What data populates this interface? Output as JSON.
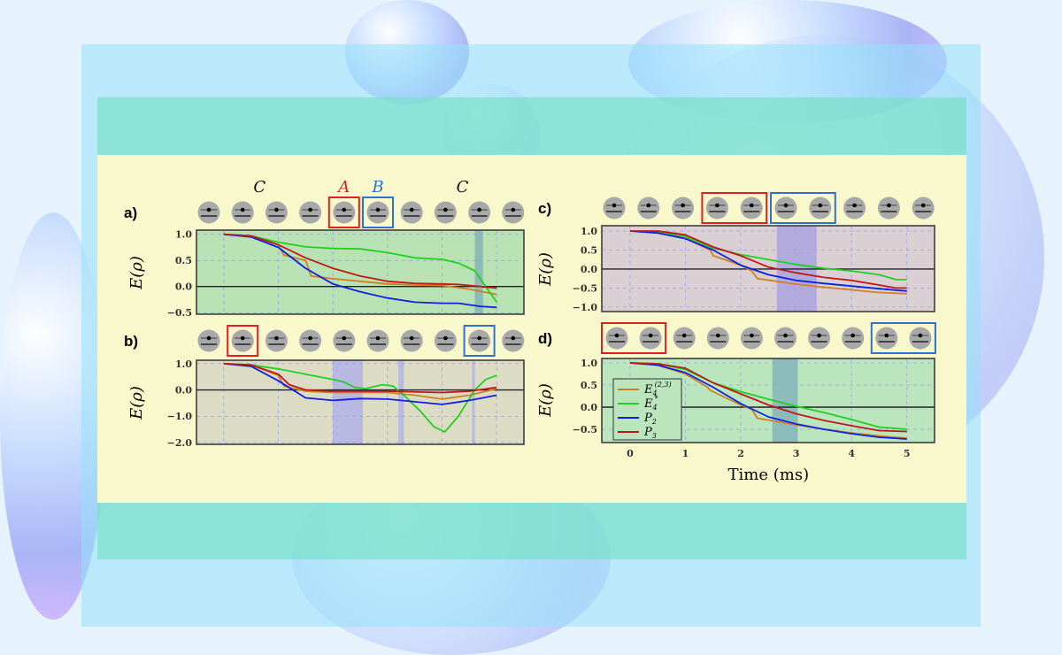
{
  "colors": {
    "E4_23": "#d08020",
    "E4_star": "#20d020",
    "P2": "#1020e0",
    "P3": "#c01818",
    "box_A": "#e02020",
    "box_B": "#3070d0"
  },
  "ion_icon": "trapped-ion-icon",
  "x_axis": {
    "label": "Time (ms)",
    "ticks": [
      "0",
      "1",
      "2",
      "3",
      "4",
      "5"
    ]
  },
  "legend": [
    {
      "key": "E4_23",
      "label": "E",
      "sub": "4",
      "sup": "(2,3)"
    },
    {
      "key": "E4_star",
      "label": "E",
      "sub": "4",
      "sup": "*"
    },
    {
      "key": "P2",
      "label": "P",
      "sub": "2",
      "sup": ""
    },
    {
      "key": "P3",
      "label": "P",
      "sub": "3",
      "sup": ""
    }
  ],
  "chart_data": [
    {
      "panel": "a)",
      "type": "line",
      "ylabel": "E(ρ)",
      "xlim": [
        -0.5,
        5.5
      ],
      "ylim": [
        -0.53,
        1.08
      ],
      "yticks": [
        1.0,
        0.5,
        0.0,
        -0.5
      ],
      "ytick_labels": [
        "1.0",
        "0.5",
        "0.0",
        "−0.5"
      ],
      "grid": true,
      "background": "#b9e2b4",
      "shade_color": "#8cbab4",
      "shaded": [
        [
          4.6,
          4.75
        ]
      ],
      "ion_labels": [
        {
          "text": "C",
          "ion": 1.5,
          "color": "#111"
        },
        {
          "text": "A",
          "ion": 4,
          "color": "#e02020"
        },
        {
          "text": "B",
          "ion": 5,
          "color": "#3070d0"
        },
        {
          "text": "C",
          "ion": 7.5,
          "color": "#111"
        }
      ],
      "red_box": [
        4,
        4
      ],
      "blue_box": [
        5,
        5
      ],
      "series": {
        "E4_star": [
          [
            0,
            1
          ],
          [
            0.5,
            0.97
          ],
          [
            1,
            0.85
          ],
          [
            1.5,
            0.76
          ],
          [
            2,
            0.73
          ],
          [
            2.5,
            0.72
          ],
          [
            3,
            0.65
          ],
          [
            3.5,
            0.55
          ],
          [
            4,
            0.52
          ],
          [
            4.3,
            0.45
          ],
          [
            4.6,
            0.3
          ],
          [
            5,
            -0.3
          ]
        ],
        "P2": [
          [
            0,
            1
          ],
          [
            0.5,
            0.95
          ],
          [
            1,
            0.75
          ],
          [
            1.5,
            0.35
          ],
          [
            2,
            0.05
          ],
          [
            2.5,
            -0.1
          ],
          [
            3,
            -0.22
          ],
          [
            3.5,
            -0.3
          ],
          [
            4,
            -0.32
          ],
          [
            4.3,
            -0.32
          ],
          [
            4.7,
            -0.38
          ],
          [
            5,
            -0.4
          ]
        ],
        "P3": [
          [
            0,
            1
          ],
          [
            0.5,
            0.97
          ],
          [
            1,
            0.8
          ],
          [
            1.5,
            0.55
          ],
          [
            2,
            0.35
          ],
          [
            2.5,
            0.2
          ],
          [
            3,
            0.1
          ],
          [
            3.5,
            0.06
          ],
          [
            4,
            0.05
          ],
          [
            4.3,
            0.04
          ],
          [
            4.7,
            0.0
          ],
          [
            5,
            -0.03
          ]
        ],
        "E4_23": [
          [
            0,
            1
          ],
          [
            0.5,
            0.97
          ],
          [
            1,
            0.8
          ],
          [
            1.1,
            0.6
          ],
          [
            1.5,
            0.5
          ],
          [
            1.6,
            0.2
          ],
          [
            2,
            0.15
          ],
          [
            2.5,
            0.1
          ],
          [
            3,
            0.05
          ],
          [
            3.5,
            0.03
          ],
          [
            4,
            0.02
          ],
          [
            4.5,
            -0.05
          ],
          [
            5,
            -0.15
          ]
        ]
      }
    },
    {
      "panel": "b)",
      "type": "line",
      "ylabel": "E(ρ)",
      "xlim": [
        -0.5,
        5.5
      ],
      "ylim": [
        -2.07,
        1.13
      ],
      "yticks": [
        1.0,
        0.0,
        -1.0,
        -2.0
      ],
      "ytick_labels": [
        "1.0",
        "0.0",
        "−1.0",
        "−2.0"
      ],
      "grid": true,
      "background": "#dcdcc4",
      "shade_color": "#b8b8e2",
      "shaded": [
        [
          2,
          2.55
        ],
        [
          3.2,
          3.3
        ],
        [
          4.55,
          4.6
        ]
      ],
      "ion_labels": [],
      "red_box": [
        1,
        1
      ],
      "blue_box": [
        8,
        8
      ],
      "series": {
        "E4_star": [
          [
            0,
            1
          ],
          [
            0.5,
            0.95
          ],
          [
            1,
            0.8
          ],
          [
            1.5,
            0.6
          ],
          [
            2,
            0.4
          ],
          [
            2.2,
            0.3
          ],
          [
            2.4,
            0.1
          ],
          [
            2.6,
            0.05
          ],
          [
            2.9,
            0.2
          ],
          [
            3.1,
            0.15
          ],
          [
            3.3,
            -0.2
          ],
          [
            3.6,
            -0.8
          ],
          [
            3.85,
            -1.4
          ],
          [
            4.05,
            -1.6
          ],
          [
            4.3,
            -1.0
          ],
          [
            4.6,
            0
          ],
          [
            4.8,
            0.4
          ],
          [
            5,
            0.55
          ]
        ],
        "P2": [
          [
            0,
            1
          ],
          [
            0.5,
            0.9
          ],
          [
            1,
            0.35
          ],
          [
            1.5,
            -0.3
          ],
          [
            2,
            -0.4
          ],
          [
            2.5,
            -0.33
          ],
          [
            3,
            -0.35
          ],
          [
            3.5,
            -0.45
          ],
          [
            4,
            -0.55
          ],
          [
            4.5,
            -0.4
          ],
          [
            5,
            -0.2
          ]
        ],
        "P3": [
          [
            0,
            1
          ],
          [
            0.5,
            0.95
          ],
          [
            1,
            0.6
          ],
          [
            1.2,
            0.2
          ],
          [
            1.5,
            0.0
          ],
          [
            2,
            -0.05
          ],
          [
            3,
            -0.05
          ],
          [
            4,
            -0.1
          ],
          [
            4.5,
            -0.05
          ],
          [
            5,
            0.1
          ]
        ],
        "E4_23": [
          [
            0,
            1
          ],
          [
            0.5,
            0.95
          ],
          [
            1,
            0.55
          ],
          [
            1.1,
            0.15
          ],
          [
            1.5,
            -0.05
          ],
          [
            2,
            -0.1
          ],
          [
            3,
            -0.1
          ],
          [
            3.5,
            -0.2
          ],
          [
            4,
            -0.35
          ],
          [
            4.5,
            -0.2
          ],
          [
            5,
            0.05
          ]
        ]
      }
    },
    {
      "panel": "c)",
      "type": "line",
      "ylabel": "E(ρ)",
      "xlim": [
        -0.51,
        5.5
      ],
      "ylim": [
        -1.12,
        1.14
      ],
      "yticks": [
        1.0,
        0.5,
        0.0,
        -0.5,
        -1.0
      ],
      "ytick_labels": [
        "1.0",
        "0.5",
        "0.0",
        "−0.5",
        "−1.0"
      ],
      "grid": true,
      "background": "#dacfd3",
      "shade_color": "#b2aadc",
      "shaded": [
        [
          2.65,
          3.37
        ]
      ],
      "ion_labels": [],
      "red_box": [
        3,
        4
      ],
      "blue_box": [
        5,
        6
      ],
      "series": {
        "E4_star": [
          [
            0,
            1
          ],
          [
            0.5,
            0.98
          ],
          [
            1,
            0.85
          ],
          [
            1.5,
            0.55
          ],
          [
            2,
            0.38
          ],
          [
            2.5,
            0.25
          ],
          [
            3,
            0.12
          ],
          [
            3.5,
            0.02
          ],
          [
            4,
            -0.05
          ],
          [
            4.5,
            -0.15
          ],
          [
            4.8,
            -0.28
          ],
          [
            5,
            -0.28
          ]
        ],
        "P3": [
          [
            0,
            1
          ],
          [
            0.5,
            1
          ],
          [
            1,
            0.9
          ],
          [
            1.5,
            0.58
          ],
          [
            2,
            0.35
          ],
          [
            2.5,
            0.05
          ],
          [
            3,
            -0.1
          ],
          [
            3.5,
            -0.22
          ],
          [
            4,
            -0.3
          ],
          [
            4.5,
            -0.42
          ],
          [
            4.8,
            -0.5
          ],
          [
            5,
            -0.5
          ]
        ],
        "P2": [
          [
            0,
            1
          ],
          [
            0.5,
            0.95
          ],
          [
            1,
            0.8
          ],
          [
            1.5,
            0.5
          ],
          [
            2,
            0.1
          ],
          [
            2.5,
            -0.15
          ],
          [
            3,
            -0.3
          ],
          [
            3.5,
            -0.38
          ],
          [
            4,
            -0.45
          ],
          [
            4.5,
            -0.52
          ],
          [
            5,
            -0.58
          ]
        ],
        "E4_23": [
          [
            0,
            1
          ],
          [
            0.5,
            0.95
          ],
          [
            1,
            0.8
          ],
          [
            1.45,
            0.5
          ],
          [
            1.5,
            0.35
          ],
          [
            2,
            0.1
          ],
          [
            2.2,
            -0.05
          ],
          [
            2.3,
            -0.25
          ],
          [
            3,
            -0.4
          ],
          [
            3.5,
            -0.48
          ],
          [
            4,
            -0.55
          ],
          [
            4.5,
            -0.62
          ],
          [
            5,
            -0.65
          ]
        ]
      }
    },
    {
      "panel": "d)",
      "type": "line",
      "ylabel": "E(ρ)",
      "xlabel": "Time (ms)",
      "xlim": [
        -0.51,
        5.5
      ],
      "ylim": [
        -0.8,
        1.1
      ],
      "yticks": [
        1.0,
        0.5,
        0.0,
        -0.5
      ],
      "ytick_labels": [
        "1.0",
        "0.5",
        "0.0",
        "−0.5"
      ],
      "grid": true,
      "background": "#bae5bd",
      "shade_color": "#8cbcb9",
      "shaded": [
        [
          2.57,
          3.03
        ]
      ],
      "legend": "bottom-left",
      "ion_labels": [],
      "red_box": [
        0,
        1
      ],
      "blue_box": [
        8,
        9
      ],
      "series": {
        "E4_star": [
          [
            0,
            1
          ],
          [
            0.5,
            0.98
          ],
          [
            1,
            0.85
          ],
          [
            1.5,
            0.55
          ],
          [
            2,
            0.35
          ],
          [
            2.5,
            0.18
          ],
          [
            3,
            0.02
          ],
          [
            3.5,
            -0.12
          ],
          [
            4,
            -0.28
          ],
          [
            4.5,
            -0.45
          ],
          [
            5,
            -0.5
          ]
        ],
        "P3": [
          [
            0,
            1
          ],
          [
            0.5,
            0.98
          ],
          [
            1,
            0.88
          ],
          [
            1.5,
            0.55
          ],
          [
            2,
            0.3
          ],
          [
            2.5,
            0.05
          ],
          [
            3,
            -0.15
          ],
          [
            3.5,
            -0.3
          ],
          [
            4,
            -0.42
          ],
          [
            4.5,
            -0.53
          ],
          [
            5,
            -0.55
          ]
        ],
        "P2": [
          [
            0,
            1
          ],
          [
            0.5,
            0.95
          ],
          [
            1,
            0.78
          ],
          [
            1.5,
            0.45
          ],
          [
            2,
            0.08
          ],
          [
            2.5,
            -0.22
          ],
          [
            3,
            -0.38
          ],
          [
            3.5,
            -0.5
          ],
          [
            4,
            -0.6
          ],
          [
            4.5,
            -0.68
          ],
          [
            5,
            -0.72
          ]
        ],
        "E4_23": [
          [
            0,
            1
          ],
          [
            0.5,
            0.95
          ],
          [
            1,
            0.75
          ],
          [
            1.4,
            0.45
          ],
          [
            1.45,
            0.38
          ],
          [
            2,
            0.05
          ],
          [
            2.2,
            -0.05
          ],
          [
            2.3,
            -0.25
          ],
          [
            3,
            -0.4
          ],
          [
            3.5,
            -0.5
          ],
          [
            4,
            -0.58
          ],
          [
            4.5,
            -0.65
          ],
          [
            5,
            -0.7
          ]
        ]
      }
    }
  ]
}
